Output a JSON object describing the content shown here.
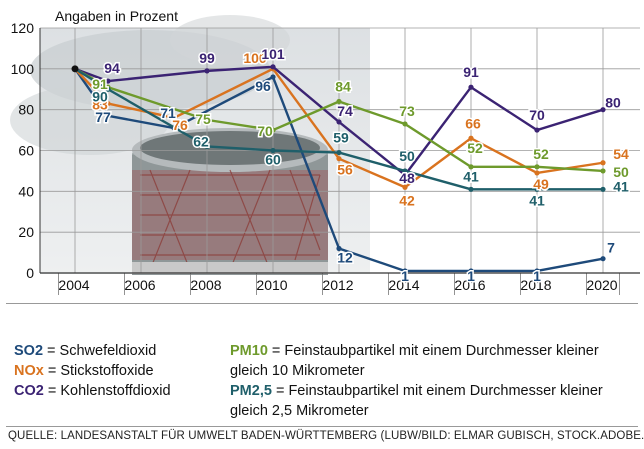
{
  "chart_data": {
    "type": "line",
    "ylabel": "Angaben in Prozent",
    "ylim": [
      0,
      120
    ],
    "yticks": [
      0,
      20,
      40,
      60,
      80,
      100,
      120
    ],
    "x": [
      2004,
      2006,
      2008,
      2010,
      2012,
      2014,
      2016,
      2018,
      2020
    ],
    "xticks": [
      "2004",
      "2006",
      "2008",
      "2010",
      "2012",
      "2014",
      "2016",
      "2018",
      "2020"
    ],
    "grid": true,
    "series": [
      {
        "name": "SO2",
        "color": "#1e4a7a",
        "points": [
          [
            2004,
            100
          ],
          [
            2005,
            77
          ],
          [
            2007,
            71
          ],
          [
            2010,
            96
          ],
          [
            2012,
            12
          ],
          [
            2014,
            1
          ],
          [
            2016,
            1
          ],
          [
            2018,
            1
          ],
          [
            2020,
            7
          ]
        ],
        "labels": [
          "77",
          "71",
          "96",
          "12",
          "1",
          "1",
          "1",
          "7"
        ]
      },
      {
        "name": "NOx",
        "color": "#d9731f",
        "points": [
          [
            2004,
            100
          ],
          [
            2005,
            83
          ],
          [
            2007,
            76
          ],
          [
            2010,
            100
          ],
          [
            2012,
            56
          ],
          [
            2014,
            42
          ],
          [
            2016,
            66
          ],
          [
            2018,
            49
          ],
          [
            2020,
            54
          ]
        ],
        "labels": [
          "83",
          "76",
          "100",
          "56",
          "42",
          "66",
          "49",
          "54"
        ]
      },
      {
        "name": "CO2",
        "color": "#3b2373",
        "points": [
          [
            2004,
            100
          ],
          [
            2005,
            94
          ],
          [
            2008,
            99
          ],
          [
            2010,
            101
          ],
          [
            2012,
            74
          ],
          [
            2014,
            48
          ],
          [
            2016,
            91
          ],
          [
            2018,
            70
          ],
          [
            2020,
            80
          ]
        ],
        "labels": [
          "94",
          "99",
          "101",
          "74",
          "48",
          "91",
          "70",
          "80"
        ]
      },
      {
        "name": "PM10",
        "color": "#6e9a2c",
        "points": [
          [
            2004,
            100
          ],
          [
            2005,
            91
          ],
          [
            2008,
            75
          ],
          [
            2010,
            70
          ],
          [
            2012,
            84
          ],
          [
            2014,
            73
          ],
          [
            2016,
            52
          ],
          [
            2018,
            52
          ],
          [
            2020,
            50
          ]
        ],
        "labels": [
          "91",
          "75",
          "70",
          "84",
          "73",
          "52",
          "52",
          "50"
        ]
      },
      {
        "name": "PM2,5",
        "color": "#1f5f6a",
        "points": [
          [
            2004,
            100
          ],
          [
            2005,
            90
          ],
          [
            2008,
            62
          ],
          [
            2010,
            60
          ],
          [
            2012,
            59
          ],
          [
            2014,
            50
          ],
          [
            2016,
            41
          ],
          [
            2018,
            41
          ],
          [
            2020,
            41
          ]
        ],
        "labels": [
          "90",
          "62",
          "60",
          "59",
          "50",
          "41",
          "41",
          "41"
        ]
      }
    ]
  },
  "legend": [
    {
      "code": "SO2",
      "text": "= Schwefeldioxid",
      "color": "#1e4a7a"
    },
    {
      "code": "NOx",
      "text": "= Stickstoffoxide",
      "color": "#d9731f"
    },
    {
      "code": "CO2",
      "text": "= Kohlenstoffdioxid",
      "color": "#3b2373"
    },
    {
      "code": "PM10",
      "text": "= Feinstaubpartikel mit einem Durchmesser kleiner",
      "text2": "gleich 10 Mikrometer",
      "color": "#6e9a2c"
    },
    {
      "code": "PM2,5",
      "text": "= Feinstaubpartikel mit einem Durchmesser kleiner",
      "text2": "gleich 2,5 Mikrometer",
      "color": "#1f5f6a"
    }
  ],
  "source": "QUELLE: LANDESANSTALT FÜR UMWELT BADEN-WÜRTTEMBERG (LUBW/BILD: ELMAR GUBISCH, STOCK.ADOBE.COM"
}
